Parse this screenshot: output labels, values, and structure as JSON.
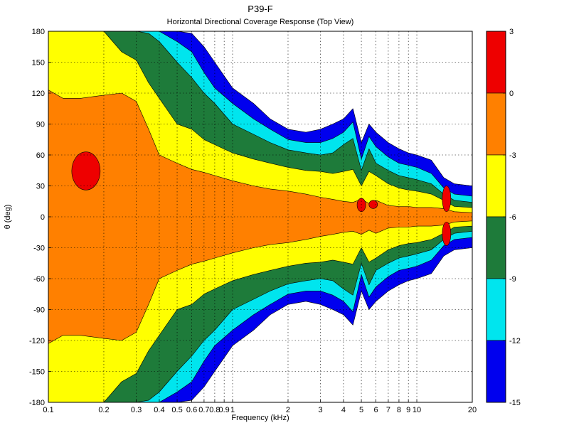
{
  "chart_data": {
    "type": "heatmap",
    "title": "P39-F",
    "subtitle": "Horizontal Directional Coverage Response (Top View)",
    "xlabel": "Frequency (kHz)",
    "ylabel": "θ (deg)",
    "x_scale": "log",
    "xlim": [
      0.1,
      20
    ],
    "ylim": [
      -180,
      180
    ],
    "grid": true,
    "x_ticks": [
      {
        "value": 0.1,
        "label": "0.1"
      },
      {
        "value": 0.2,
        "label": "0.2"
      },
      {
        "value": 0.3,
        "label": "0.3"
      },
      {
        "value": 0.4,
        "label": "0.4"
      },
      {
        "value": 0.5,
        "label": "0.5"
      },
      {
        "value": 0.6,
        "label": "0.6"
      },
      {
        "value": 0.7,
        "label": "0.7"
      },
      {
        "value": 0.8,
        "label": "0.8"
      },
      {
        "value": 0.9,
        "label": "0.9"
      },
      {
        "value": 1,
        "label": "1"
      },
      {
        "value": 2,
        "label": "2"
      },
      {
        "value": 3,
        "label": "3"
      },
      {
        "value": 4,
        "label": "4"
      },
      {
        "value": 5,
        "label": "5"
      },
      {
        "value": 6,
        "label": "6"
      },
      {
        "value": 7,
        "label": "7"
      },
      {
        "value": 8,
        "label": "8"
      },
      {
        "value": 9,
        "label": "9"
      },
      {
        "value": 10,
        "label": "10"
      },
      {
        "value": 20,
        "label": "20"
      }
    ],
    "y_ticks": [
      "180",
      "150",
      "120",
      "90",
      "60",
      "30",
      "0",
      "-30",
      "-60",
      "-90",
      "-120",
      "-150",
      "-180"
    ],
    "colorbar": {
      "levels": [
        {
          "from": -15,
          "to": -12,
          "color": "#0000ee"
        },
        {
          "from": -12,
          "to": -9,
          "color": "#00e5ee"
        },
        {
          "from": -9,
          "to": -6,
          "color": "#1e7b3a"
        },
        {
          "from": -6,
          "to": -3,
          "color": "#ffff00"
        },
        {
          "from": -3,
          "to": 0,
          "color": "#ff8000"
        },
        {
          "from": 0,
          "to": 3,
          "color": "#ee0000"
        }
      ],
      "tick_labels": [
        "3",
        "0",
        "-3",
        "-6",
        "-9",
        "-12",
        "-15"
      ]
    },
    "contours": {
      "freq": [
        0.1,
        0.12,
        0.15,
        0.2,
        0.25,
        0.3,
        0.35,
        0.4,
        0.5,
        0.6,
        0.7,
        0.8,
        1,
        1.3,
        1.6,
        2,
        2.5,
        3,
        3.5,
        4,
        4.5,
        5,
        5.5,
        6,
        7,
        8,
        9,
        10,
        12,
        14,
        16,
        20
      ],
      "boundary_angles_deg": [
        {
          "level": -3,
          "angles": [
            123,
            115,
            115,
            118,
            120,
            112,
            85,
            60,
            52,
            46,
            43,
            40,
            35,
            30,
            27,
            25,
            22,
            19,
            17,
            15,
            14,
            17,
            13,
            16,
            11,
            10,
            10,
            9,
            9,
            8,
            5,
            4
          ]
        },
        {
          "level": -6,
          "angles": [
            180,
            180,
            180,
            180,
            160,
            152,
            130,
            115,
            90,
            85,
            75,
            70,
            62,
            56,
            52,
            48,
            45,
            44,
            42,
            44,
            46,
            30,
            44,
            40,
            32,
            28,
            26,
            25,
            22,
            16,
            10,
            9
          ]
        },
        {
          "level": -9,
          "angles": [
            180,
            180,
            180,
            180,
            180,
            180,
            178,
            170,
            150,
            135,
            120,
            110,
            90,
            80,
            72,
            65,
            62,
            60,
            62,
            70,
            76,
            45,
            66,
            52,
            45,
            40,
            38,
            36,
            32,
            22,
            16,
            14
          ]
        },
        {
          "level": -12,
          "angles": [
            180,
            180,
            180,
            180,
            180,
            180,
            180,
            180,
            170,
            160,
            140,
            125,
            110,
            95,
            85,
            75,
            72,
            72,
            76,
            82,
            92,
            56,
            78,
            68,
            58,
            52,
            50,
            48,
            42,
            28,
            22,
            20
          ]
        },
        {
          "level": -15,
          "angles": [
            180,
            180,
            180,
            180,
            180,
            180,
            180,
            180,
            180,
            178,
            165,
            150,
            125,
            110,
            95,
            85,
            82,
            85,
            90,
            95,
            105,
            72,
            90,
            82,
            72,
            66,
            62,
            60,
            55,
            38,
            32,
            30
          ]
        }
      ]
    },
    "peak_regions": [
      {
        "level": 0,
        "freq_center": 0.16,
        "angle_range": [
          26,
          63
        ]
      },
      {
        "level": 0,
        "freq_center": 5.0,
        "angle_range": [
          5,
          18
        ]
      },
      {
        "level": 0,
        "freq_center": 5.8,
        "angle_range": [
          8,
          16
        ]
      },
      {
        "level": 0,
        "freq_center": 14.5,
        "angle_range": [
          5,
          30
        ]
      },
      {
        "level": 0,
        "freq_center": 14.5,
        "angle_range": [
          -28,
          -5
        ]
      }
    ]
  }
}
